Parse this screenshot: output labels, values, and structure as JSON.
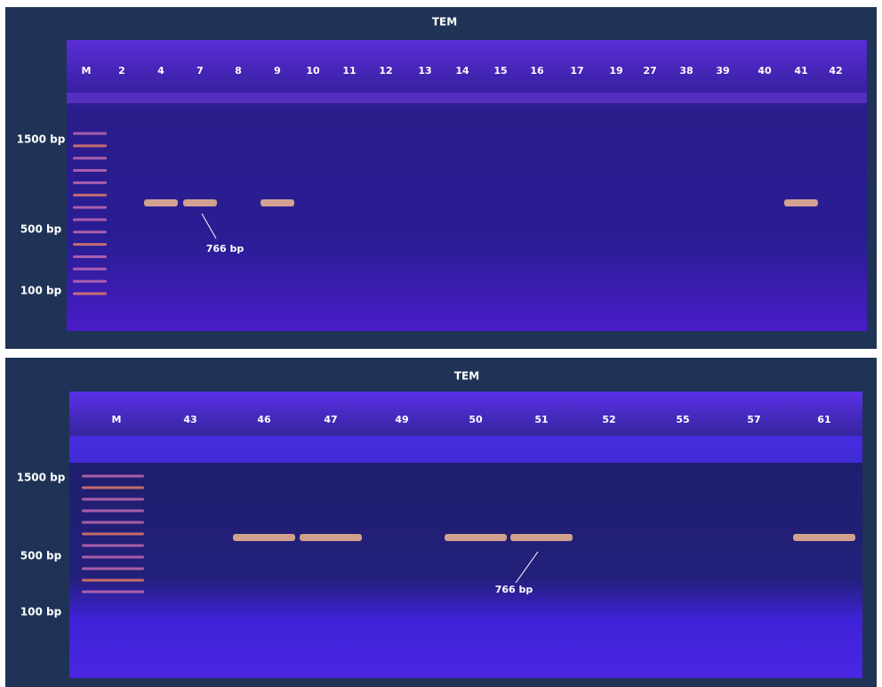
{
  "panels": [
    {
      "title": "TEM",
      "lanes": [
        "M",
        "2",
        "4",
        "7",
        "8",
        "9",
        "10",
        "11",
        "12",
        "13",
        "14",
        "15",
        "16",
        "17",
        "19",
        "27",
        "38",
        "39",
        "40",
        "41",
        "42"
      ],
      "markers": [
        "1500 bp",
        "500 bp",
        "100 bp"
      ],
      "annotation": "766 bp"
    },
    {
      "title": "TEM",
      "lanes": [
        "M",
        "43",
        "46",
        "47",
        "49",
        "50",
        "51",
        "52",
        "55",
        "57",
        "61"
      ],
      "markers": [
        "1500 bp",
        "500 bp",
        "100 bp"
      ],
      "annotation": "766 bp"
    }
  ]
}
